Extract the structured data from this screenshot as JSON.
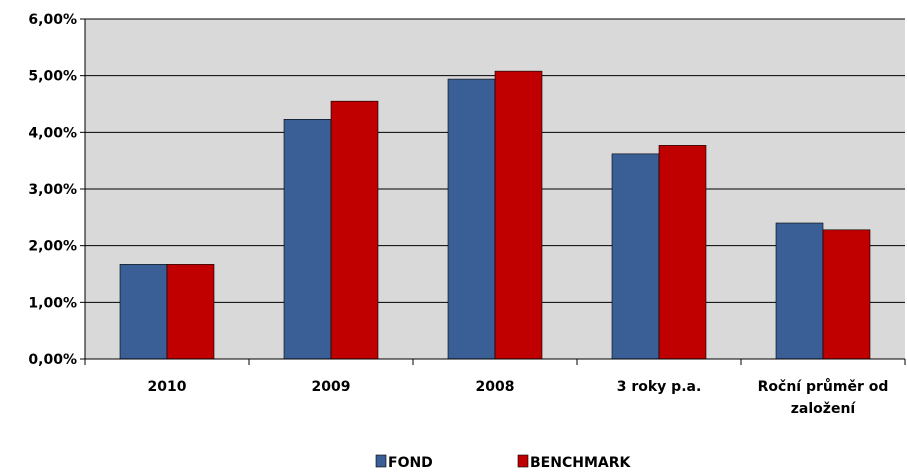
{
  "chart_data": {
    "type": "bar",
    "categories": [
      [
        "2010"
      ],
      [
        "2009"
      ],
      [
        "2008"
      ],
      [
        "3 roky p.a."
      ],
      [
        "Roční průměr od",
        "založení"
      ]
    ],
    "series": [
      {
        "name": "FOND",
        "color": "#3a5f96",
        "values": [
          1.67,
          4.23,
          4.94,
          3.62,
          2.4
        ]
      },
      {
        "name": "BENCHMARK",
        "color": "#c00000",
        "values": [
          1.67,
          4.55,
          5.08,
          3.77,
          2.28
        ]
      }
    ],
    "ylim": [
      0,
      6
    ],
    "yticks": [
      "0,00%",
      "1,00%",
      "2,00%",
      "3,00%",
      "4,00%",
      "5,00%",
      "6,00%"
    ],
    "plot_background": "#d9d9d9",
    "grid": true,
    "legend_position": "bottom"
  }
}
